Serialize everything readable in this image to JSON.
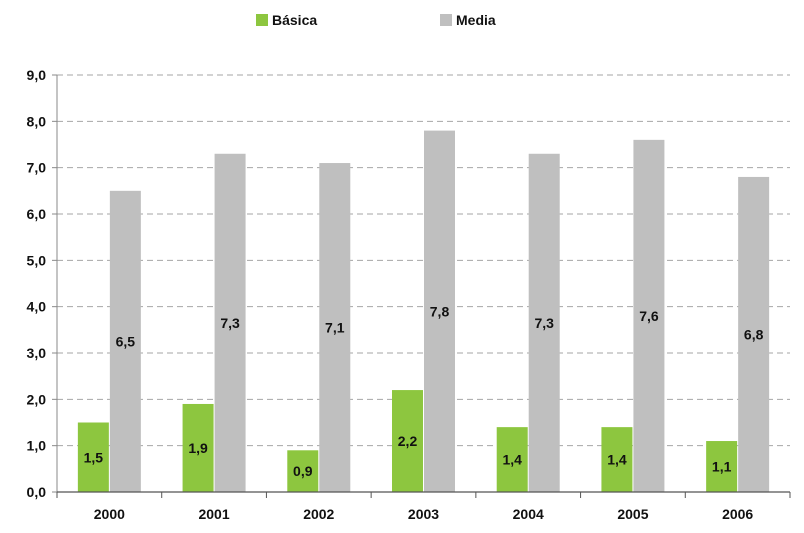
{
  "chart_data": {
    "type": "bar",
    "title": "",
    "xlabel": "",
    "ylabel": "",
    "categories": [
      "2000",
      "2001",
      "2002",
      "2003",
      "2004",
      "2005",
      "2006"
    ],
    "series": [
      {
        "name": "Básica",
        "color": "#8DC63F",
        "values": [
          1.5,
          1.9,
          0.9,
          2.2,
          1.4,
          1.4,
          1.1
        ],
        "labels": [
          "1,5",
          "1,9",
          "0,9",
          "2,2",
          "1,4",
          "1,4",
          "1,1"
        ]
      },
      {
        "name": "Media",
        "color": "#BFBFBF",
        "values": [
          6.5,
          7.3,
          7.1,
          7.8,
          7.3,
          7.6,
          6.8
        ],
        "labels": [
          "6,5",
          "7,3",
          "7,1",
          "7,8",
          "7,3",
          "7,6",
          "6,8"
        ]
      }
    ],
    "ylim": [
      0,
      9
    ],
    "yticks": [
      "0,0",
      "1,0",
      "2,0",
      "3,0",
      "4,0",
      "5,0",
      "6,0",
      "7,0",
      "8,0",
      "9,0"
    ],
    "grid": true,
    "legend_position": "top-center"
  }
}
